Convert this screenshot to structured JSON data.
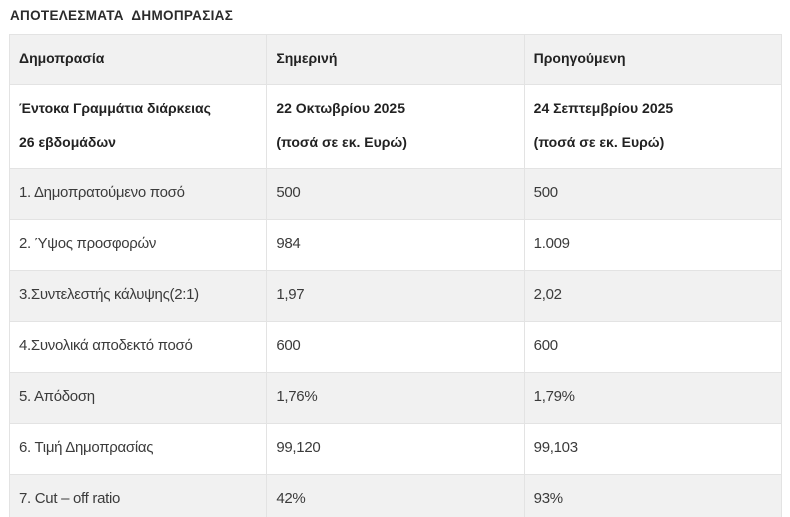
{
  "page": {
    "title": "ΑΠΟΤΕΛΕΣΜΑΤΑ  ΔΗΜΟΠΡΑΣΙΑΣ"
  },
  "table": {
    "columns": [
      "Δημοπρασία",
      "Σημερινή",
      "Προηγούμενη"
    ],
    "subheader": {
      "col1": [
        "Έντοκα Γραμμάτια διάρκειας",
        "26 εβδομάδων"
      ],
      "col2": [
        "22 Οκτωβρίου 2025",
        "(ποσά σε εκ. Ευρώ)"
      ],
      "col3": [
        "24 Σεπτεμβρίου 2025",
        "(ποσά σε εκ. Ευρώ)"
      ]
    },
    "rows": [
      {
        "label": "1. Δημοπρατούμενο ποσό",
        "current": "500",
        "previous": "500"
      },
      {
        "label": "2. Ύψος προσφορών",
        "current": "984",
        "previous": "1.009"
      },
      {
        "label": "3.Συντελεστής κάλυψης(2:1)",
        "current": "1,97",
        "previous": "2,02"
      },
      {
        "label": "4.Συνολικά αποδεκτό ποσό",
        "current": "600",
        "previous": "600"
      },
      {
        "label": "5. Απόδοση",
        "current": "1,76%",
        "previous": "1,79%"
      },
      {
        "label": "6. Τιμή Δημοπρασίας",
        "current": "99,120",
        "previous": "99,103"
      },
      {
        "label": "7. Cut – off ratio",
        "current": "42%",
        "previous": "93%"
      }
    ],
    "colors": {
      "stripe_bg": "#f1f1f1",
      "cell_border": "#e3e3e3",
      "bottom_border": "#a9a9a9",
      "header_text": "#222222",
      "body_text": "#3b3b3b"
    }
  },
  "chart_data": {
    "type": "table",
    "title": "ΑΠΟΤΕΛΕΣΜΑΤΑ ΔΗΜΟΠΡΑΣΙΑΣ",
    "columns": [
      "Δημοπρασία",
      "Σημερινή",
      "Προηγούμενη"
    ],
    "rows": [
      [
        "Έντοκα Γραμμάτια διάρκειας 26 εβδομάδων",
        "22 Οκτωβρίου 2025 (ποσά σε εκ. Ευρώ)",
        "24 Σεπτεμβρίου 2025 (ποσά σε εκ. Ευρώ)"
      ],
      [
        "1. Δημοπρατούμενο ποσό",
        "500",
        "500"
      ],
      [
        "2. Ύψος προσφορών",
        "984",
        "1.009"
      ],
      [
        "3.Συντελεστής κάλυψης(2:1)",
        "1,97",
        "2,02"
      ],
      [
        "4.Συνολικά αποδεκτό ποσό",
        "600",
        "600"
      ],
      [
        "5. Απόδοση",
        "1,76%",
        "1,79%"
      ],
      [
        "6. Τιμή Δημοπρασίας",
        "99,120",
        "99,103"
      ],
      [
        "7. Cut – off ratio",
        "42%",
        "93%"
      ]
    ],
    "layout": {
      "striped_rows": true,
      "stripe_color": "#f1f1f1",
      "grid": true
    }
  }
}
